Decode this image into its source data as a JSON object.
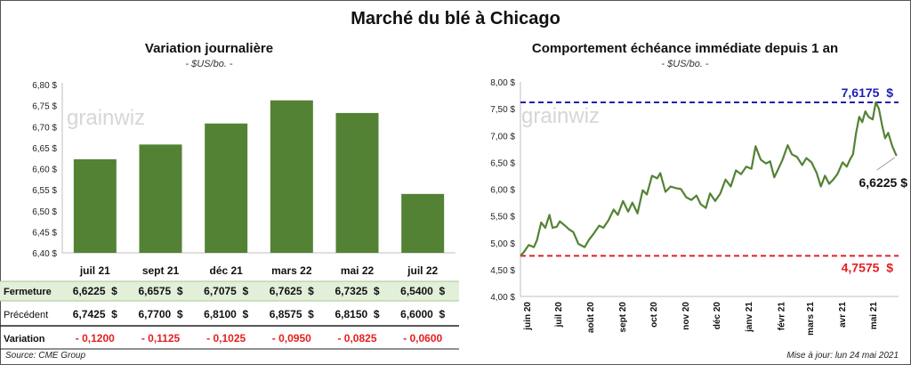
{
  "title": "Marché du blé à Chicago",
  "footer": {
    "source": "Source: CME Group",
    "updated": "Mise à jour: lun 24 mai 2021"
  },
  "colors": {
    "bar": "#548235",
    "line": "#548235",
    "high": "#1f1fb4",
    "low": "#e32020",
    "close_row_bg": "#e2efd9",
    "negative": "#e32020"
  },
  "watermark": "grainwiz",
  "chart_data": [
    {
      "type": "bar",
      "title": "Variation journalière",
      "subtitle": "- $US/bo. -",
      "categories": [
        "juil 21",
        "sept 21",
        "déc 21",
        "mars 22",
        "mai 22",
        "juil 22"
      ],
      "values": [
        6.6225,
        6.6575,
        6.7075,
        6.7625,
        6.7325,
        6.54
      ],
      "ylim": [
        6.4,
        6.8
      ],
      "yticks": [
        "6,40 $",
        "6,45 $",
        "6,50 $",
        "6,55 $",
        "6,60 $",
        "6,65 $",
        "6,70 $",
        "6,75 $",
        "6,80 $"
      ],
      "table": [
        {
          "label": "Fermeture",
          "cells": [
            "6,6225  $",
            "6,6575  $",
            "6,7075  $",
            "6,7625  $",
            "6,7325  $",
            "6,5400  $"
          ]
        },
        {
          "label": "Précédent",
          "cells": [
            "6,7425  $",
            "6,7700  $",
            "6,8100  $",
            "6,8575  $",
            "6,8150  $",
            "6,6000  $"
          ]
        },
        {
          "label": "Variation",
          "cells": [
            "- 0,1200",
            "- 0,1125",
            "- 0,1025",
            "- 0,0950",
            "- 0,0825",
            "- 0,0600"
          ]
        }
      ]
    },
    {
      "type": "line",
      "title": "Comportement  échéance immédiate depuis 1 an",
      "subtitle": "- $US/bo. -",
      "ylim": [
        4.0,
        8.0
      ],
      "yticks": [
        "4,00 $",
        "4,50 $",
        "5,00 $",
        "5,50 $",
        "6,00 $",
        "6,50 $",
        "7,00 $",
        "7,50 $",
        "8,00 $"
      ],
      "xticks": [
        "juin 20",
        "juil 20",
        "août 20",
        "sept 20",
        "oct 20",
        "nov 20",
        "déc 20",
        "janv 21",
        "févr 21",
        "mars 21",
        "avr 21",
        "mai 21"
      ],
      "high": {
        "value": 7.6175,
        "label": "7,6175  $"
      },
      "low": {
        "value": 4.7575,
        "label": "4,7575  $"
      },
      "last": {
        "value": 6.6225,
        "label": "6,6225 $"
      },
      "x": [
        "2020-05-26",
        "2020-05-29",
        "2020-06-03",
        "2020-06-08",
        "2020-06-11",
        "2020-06-15",
        "2020-06-19",
        "2020-06-23",
        "2020-06-26",
        "2020-06-30",
        "2020-07-03",
        "2020-07-08",
        "2020-07-12",
        "2020-07-16",
        "2020-07-21",
        "2020-07-27",
        "2020-07-31",
        "2020-08-05",
        "2020-08-10",
        "2020-08-14",
        "2020-08-19",
        "2020-08-24",
        "2020-08-28",
        "2020-09-02",
        "2020-09-07",
        "2020-09-11",
        "2020-09-16",
        "2020-09-21",
        "2020-09-25",
        "2020-09-30",
        "2020-10-05",
        "2020-10-08",
        "2020-10-13",
        "2020-10-18",
        "2020-10-23",
        "2020-10-28",
        "2020-11-02",
        "2020-11-07",
        "2020-11-12",
        "2020-11-16",
        "2020-11-21",
        "2020-11-25",
        "2020-11-30",
        "2020-12-05",
        "2020-12-10",
        "2020-12-15",
        "2020-12-20",
        "2020-12-25",
        "2020-12-30",
        "2021-01-04",
        "2021-01-08",
        "2021-01-13",
        "2021-01-18",
        "2021-01-22",
        "2021-01-26",
        "2021-01-30",
        "2021-02-03",
        "2021-02-08",
        "2021-02-12",
        "2021-02-17",
        "2021-02-22",
        "2021-02-26",
        "2021-03-03",
        "2021-03-08",
        "2021-03-12",
        "2021-03-16",
        "2021-03-20",
        "2021-03-24",
        "2021-03-28",
        "2021-04-02",
        "2021-04-06",
        "2021-04-09",
        "2021-04-12",
        "2021-04-15",
        "2021-04-18",
        "2021-04-21",
        "2021-04-24",
        "2021-04-27",
        "2021-05-01",
        "2021-05-04",
        "2021-05-07",
        "2021-05-10",
        "2021-05-13",
        "2021-05-16",
        "2021-05-20",
        "2021-05-24"
      ],
      "y": [
        4.76,
        4.82,
        4.96,
        4.92,
        5.05,
        5.38,
        5.28,
        5.52,
        5.28,
        5.3,
        5.4,
        5.32,
        5.25,
        5.2,
        4.98,
        4.92,
        5.05,
        5.18,
        5.32,
        5.28,
        5.42,
        5.62,
        5.52,
        5.78,
        5.58,
        5.75,
        5.55,
        5.98,
        5.9,
        6.25,
        6.2,
        6.3,
        5.95,
        6.05,
        6.02,
        6.0,
        5.85,
        5.8,
        5.88,
        5.72,
        5.65,
        5.92,
        5.78,
        5.92,
        6.18,
        6.05,
        6.35,
        6.28,
        6.42,
        6.38,
        6.8,
        6.55,
        6.48,
        6.52,
        6.22,
        6.38,
        6.55,
        6.82,
        6.65,
        6.6,
        6.45,
        6.58,
        6.5,
        6.3,
        6.05,
        6.25,
        6.1,
        6.18,
        6.28,
        6.5,
        6.42,
        6.55,
        6.65,
        7.05,
        7.35,
        7.25,
        7.45,
        7.35,
        7.3,
        7.62,
        7.5,
        7.2,
        6.95,
        7.05,
        6.8,
        6.62
      ]
    }
  ]
}
